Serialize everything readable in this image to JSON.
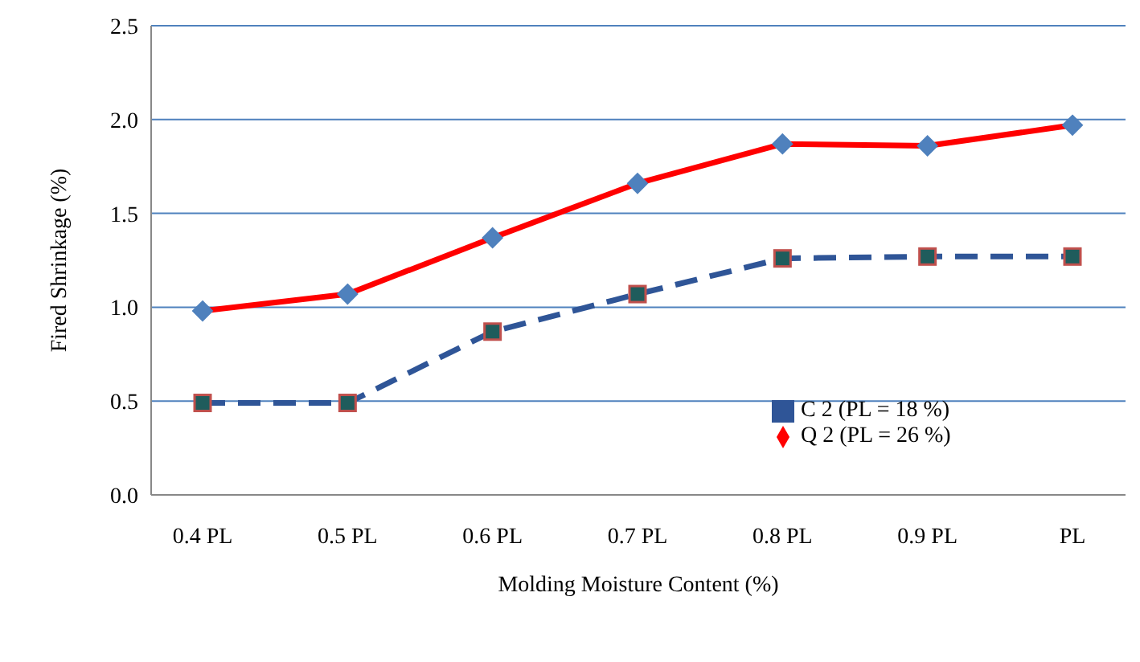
{
  "chart_data": {
    "type": "line",
    "xlabel": "Molding Moisture Content (%)",
    "ylabel": "Fired Shrinkage (%)",
    "categories": [
      "0.4 PL",
      "0.5 PL",
      "0.6 PL",
      "0.7 PL",
      "0.8 PL",
      "0.9 PL",
      "PL"
    ],
    "series": [
      {
        "name": "Q 2 (PL = 26 %)",
        "color": "#ff0000",
        "values": [
          0.98,
          1.07,
          1.37,
          1.66,
          1.87,
          1.86,
          1.97
        ],
        "marker": "diamond",
        "line_style": "solid"
      },
      {
        "name": "C 2 (PL = 18 %)",
        "color": "#2f5597",
        "values": [
          0.49,
          0.49,
          0.87,
          1.07,
          1.26,
          1.27,
          1.27
        ],
        "marker": "square",
        "line_style": "dashed"
      }
    ],
    "ylim": [
      0,
      2.5
    ],
    "yticks": [
      {
        "value": 0,
        "label": "0.0"
      },
      0.5,
      {
        "value": 1,
        "label": "1.0"
      },
      1.5,
      {
        "value": 2,
        "label": "2.0"
      },
      2.5
    ],
    "grid": "y",
    "legend": "bottom right"
  }
}
